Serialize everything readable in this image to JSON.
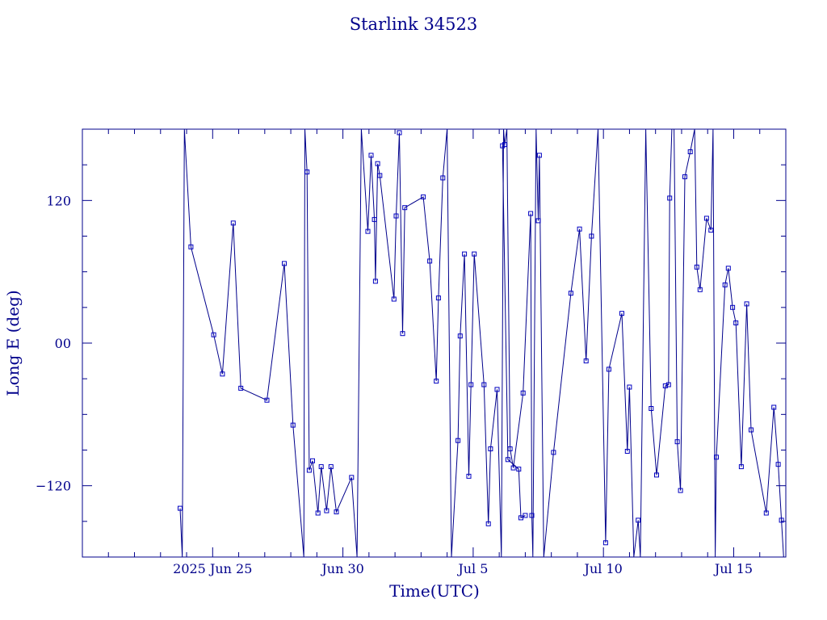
{
  "chart_data": {
    "type": "scatter",
    "title": "Starlink 34523",
    "xlabel": "Time(UTC)",
    "ylabel": "Long E (deg)",
    "xlim": [
      "2025-06-20T00:00",
      "2025-07-17T00:00"
    ],
    "ylim": [
      -180,
      180
    ],
    "x_tick_labels": [
      {
        "x": "2025-06-25T00:00",
        "label": "2025 Jun 25"
      },
      {
        "x": "2025-06-30T00:00",
        "label": "Jun 30"
      },
      {
        "x": "2025-07-05T00:00",
        "label": "Jul  5"
      },
      {
        "x": "2025-07-10T00:00",
        "label": "Jul 10"
      },
      {
        "x": "2025-07-15T00:00",
        "label": "Jul 15"
      }
    ],
    "y_tick_labels": [
      {
        "y": 120,
        "label": "120"
      },
      {
        "y": 0,
        "label": "00"
      },
      {
        "y": -120,
        "label": "−120"
      }
    ],
    "grid": false,
    "legend": "none",
    "line_color": "#00008b",
    "marker_color": "#0000c0",
    "series": [
      {
        "values": [
          [
            "2025-06-23T18:00",
            -139
          ],
          [
            "2025-06-23T20:00",
            -180
          ],
          [
            "2025-06-23T22:00",
            180
          ],
          [
            "2025-06-24T04:00",
            81
          ],
          [
            "2025-06-25T01:00",
            7
          ],
          [
            "2025-06-25T09:00",
            -26
          ],
          [
            "2025-06-25T19:00",
            101
          ],
          [
            "2025-06-26T02:00",
            -38
          ],
          [
            "2025-06-27T02:00",
            -48
          ],
          [
            "2025-06-27T18:00",
            67
          ],
          [
            "2025-06-28T02:00",
            -69
          ],
          [
            "2025-06-28T12:00",
            -180
          ],
          [
            "2025-06-28T13:00",
            180
          ],
          [
            "2025-06-28T15:00",
            144
          ],
          [
            "2025-06-28T17:00",
            -107
          ],
          [
            "2025-06-28T20:00",
            -99
          ],
          [
            "2025-06-29T01:00",
            -143
          ],
          [
            "2025-06-29T04:00",
            -104
          ],
          [
            "2025-06-29T09:00",
            -141
          ],
          [
            "2025-06-29T13:00",
            -104
          ],
          [
            "2025-06-29T18:00",
            -142
          ],
          [
            "2025-06-30T08:00",
            -113
          ],
          [
            "2025-06-30T13:00",
            -180
          ],
          [
            "2025-06-30T17:00",
            180
          ],
          [
            "2025-06-30T23:00",
            94
          ],
          [
            "2025-07-01T02:00",
            158
          ],
          [
            "2025-07-01T05:00",
            104
          ],
          [
            "2025-07-01T06:00",
            52
          ],
          [
            "2025-07-01T08:00",
            151
          ],
          [
            "2025-07-01T10:00",
            141
          ],
          [
            "2025-07-01T23:00",
            37
          ],
          [
            "2025-07-02T01:00",
            107
          ],
          [
            "2025-07-02T04:00",
            177
          ],
          [
            "2025-07-02T07:00",
            8
          ],
          [
            "2025-07-02T09:00",
            114
          ],
          [
            "2025-07-03T02:00",
            123
          ],
          [
            "2025-07-03T08:00",
            69
          ],
          [
            "2025-07-03T14:00",
            -32
          ],
          [
            "2025-07-03T16:00",
            38
          ],
          [
            "2025-07-03T20:00",
            139
          ],
          [
            "2025-07-04T00:00",
            180
          ],
          [
            "2025-07-04T04:00",
            -180
          ],
          [
            "2025-07-04T10:00",
            -82
          ],
          [
            "2025-07-04T12:00",
            6
          ],
          [
            "2025-07-04T16:00",
            75
          ],
          [
            "2025-07-04T20:00",
            -112
          ],
          [
            "2025-07-04T22:00",
            -35
          ],
          [
            "2025-07-05T01:00",
            75
          ],
          [
            "2025-07-05T10:00",
            -35
          ],
          [
            "2025-07-05T14:00",
            -152
          ],
          [
            "2025-07-05T16:00",
            -89
          ],
          [
            "2025-07-05T22:00",
            -39
          ],
          [
            "2025-07-06T02:00",
            -180
          ],
          [
            "2025-07-06T04:00",
            180
          ],
          [
            "2025-07-06T05:00",
            167
          ],
          [
            "2025-07-06T07:00",
            180
          ],
          [
            "2025-07-06T10:00",
            -89
          ],
          [
            "2025-07-06T13:00",
            -105
          ],
          [
            "2025-07-06T22:00",
            -42
          ],
          [
            "2025-07-07T05:00",
            109
          ],
          [
            "2025-07-07T06:00",
            -145
          ],
          [
            "2025-07-07T07:00",
            -180
          ],
          [
            "2025-07-07T10:00",
            180
          ],
          [
            "2025-07-07T12:00",
            103
          ],
          [
            "2025-07-07T13:00",
            158
          ],
          [
            "2025-07-07T17:00",
            -180
          ],
          [
            "2025-07-08T02:00",
            -92
          ],
          [
            "2025-07-08T18:00",
            42
          ],
          [
            "2025-07-09T02:00",
            96
          ],
          [
            "2025-07-09T08:00",
            -15
          ],
          [
            "2025-07-09T13:00",
            90
          ],
          [
            "2025-07-09T19:00",
            180
          ],
          [
            "2025-07-10T02:00",
            -168
          ],
          [
            "2025-07-10T05:00",
            -22
          ],
          [
            "2025-07-10T17:00",
            25
          ],
          [
            "2025-07-10T22:00",
            -91
          ],
          [
            "2025-07-11T00:00",
            -37
          ],
          [
            "2025-07-11T04:00",
            -180
          ],
          [
            "2025-07-11T08:00",
            -149
          ],
          [
            "2025-07-11T10:00",
            -180
          ],
          [
            "2025-07-11T15:00",
            180
          ],
          [
            "2025-07-11T20:00",
            -55
          ],
          [
            "2025-07-12T01:00",
            -111
          ],
          [
            "2025-07-12T09:00",
            -36
          ],
          [
            "2025-07-12T12:00",
            -35
          ],
          [
            "2025-07-12T13:00",
            122
          ],
          [
            "2025-07-12T15:00",
            180
          ],
          [
            "2025-07-12T17:00",
            180
          ],
          [
            "2025-07-12T20:00",
            -83
          ],
          [
            "2025-07-12T23:00",
            -124
          ],
          [
            "2025-07-13T03:00",
            140
          ],
          [
            "2025-07-13T08:00",
            161
          ],
          [
            "2025-07-13T12:00",
            180
          ],
          [
            "2025-07-13T14:00",
            64
          ],
          [
            "2025-07-13T17:00",
            45
          ],
          [
            "2025-07-13T23:00",
            105
          ],
          [
            "2025-07-14T03:00",
            95
          ],
          [
            "2025-07-14T05:00",
            180
          ],
          [
            "2025-07-14T07:00",
            -180
          ],
          [
            "2025-07-14T08:00",
            -96
          ],
          [
            "2025-07-14T16:00",
            49
          ],
          [
            "2025-07-14T19:00",
            63
          ],
          [
            "2025-07-14T23:00",
            30
          ],
          [
            "2025-07-15T02:00",
            17
          ],
          [
            "2025-07-15T07:00",
            -104
          ],
          [
            "2025-07-15T12:00",
            33
          ],
          [
            "2025-07-15T16:00",
            -73
          ],
          [
            "2025-07-16T06:00",
            -143
          ],
          [
            "2025-07-16T13:00",
            -54
          ],
          [
            "2025-07-16T17:00",
            -102
          ],
          [
            "2025-07-16T20:00",
            -149
          ],
          [
            "2025-07-16T22:00",
            -180
          ]
        ]
      },
      {
        "values": [
          [
            "2025-07-06T03:00",
            166
          ],
          [
            "2025-07-06T08:00",
            -98
          ],
          [
            "2025-07-06T18:00",
            -106
          ],
          [
            "2025-07-06T20:00",
            -147
          ],
          [
            "2025-07-07T00:00",
            -145
          ]
        ]
      }
    ]
  }
}
